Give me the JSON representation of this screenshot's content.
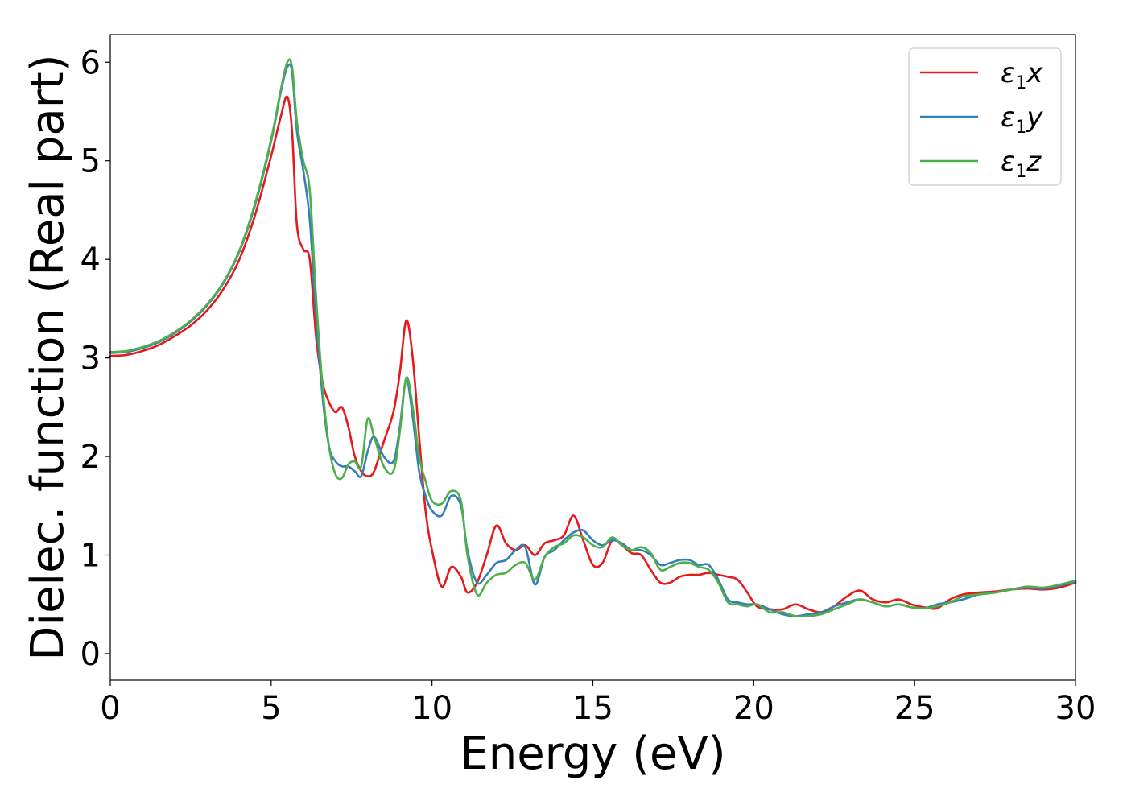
{
  "chart_data": {
    "type": "line",
    "title": "",
    "xlabel": "Energy (eV)",
    "ylabel": "Dielec. function (Real part)",
    "xlim": [
      0,
      30
    ],
    "ylim": [
      -0.27,
      6.28
    ],
    "xticks": [
      "0",
      "5",
      "10",
      "15",
      "20",
      "25",
      "30"
    ],
    "yticks": [
      "0",
      "1",
      "2",
      "3",
      "4",
      "5",
      "6"
    ],
    "grid": false,
    "legend_position": "top-right",
    "series": [
      {
        "name": "ε1x",
        "legend": {
          "main": "ε",
          "sub": "1",
          "suffix": "x"
        },
        "color": "#e41a1c",
        "x": [
          0,
          0.5,
          1,
          1.5,
          2,
          2.5,
          3,
          3.5,
          4,
          4.5,
          5,
          5.3,
          5.5,
          5.65,
          5.8,
          6.0,
          6.2,
          6.4,
          6.6,
          6.8,
          7.0,
          7.2,
          7.4,
          7.6,
          7.8,
          8.0,
          8.2,
          8.5,
          8.8,
          9.0,
          9.2,
          9.4,
          9.6,
          9.8,
          10.0,
          10.3,
          10.6,
          10.9,
          11.1,
          11.4,
          11.7,
          12.0,
          12.3,
          12.6,
          12.9,
          13.2,
          13.5,
          13.8,
          14.1,
          14.4,
          14.7,
          15.0,
          15.3,
          15.6,
          15.9,
          16.2,
          16.5,
          16.8,
          17.1,
          17.4,
          17.7,
          18.0,
          18.3,
          18.6,
          18.9,
          19.2,
          19.5,
          19.8,
          20.1,
          20.5,
          20.9,
          21.3,
          21.7,
          22.1,
          22.5,
          22.9,
          23.3,
          23.7,
          24.1,
          24.5,
          24.9,
          25.3,
          25.7,
          26.1,
          26.5,
          27.0,
          27.5,
          28.0,
          28.5,
          29.0,
          29.5,
          30.0
        ],
        "values": [
          3.02,
          3.03,
          3.07,
          3.13,
          3.22,
          3.33,
          3.48,
          3.69,
          3.99,
          4.45,
          5.05,
          5.45,
          5.65,
          5.3,
          4.35,
          4.1,
          4.0,
          3.2,
          2.75,
          2.55,
          2.45,
          2.5,
          2.3,
          2.0,
          1.85,
          1.8,
          1.85,
          2.15,
          2.45,
          2.85,
          3.38,
          3.0,
          2.2,
          1.45,
          1.05,
          0.68,
          0.88,
          0.78,
          0.62,
          0.72,
          1.0,
          1.3,
          1.12,
          1.05,
          1.1,
          1.0,
          1.12,
          1.15,
          1.2,
          1.4,
          1.15,
          0.9,
          0.92,
          1.15,
          1.1,
          1.02,
          1.0,
          0.85,
          0.72,
          0.72,
          0.78,
          0.8,
          0.8,
          0.82,
          0.8,
          0.78,
          0.75,
          0.62,
          0.48,
          0.45,
          0.45,
          0.5,
          0.45,
          0.42,
          0.48,
          0.58,
          0.64,
          0.55,
          0.52,
          0.55,
          0.5,
          0.47,
          0.46,
          0.55,
          0.6,
          0.62,
          0.63,
          0.65,
          0.66,
          0.65,
          0.67,
          0.72
        ]
      },
      {
        "name": "ε1y",
        "legend": {
          "main": "ε",
          "sub": "1",
          "suffix": "y"
        },
        "color": "#377eb8",
        "x": [
          0,
          0.5,
          1,
          1.5,
          2,
          2.5,
          3,
          3.5,
          4,
          4.5,
          5,
          5.3,
          5.5,
          5.65,
          5.8,
          6.0,
          6.2,
          6.4,
          6.6,
          6.8,
          7.0,
          7.2,
          7.4,
          7.6,
          7.8,
          8.0,
          8.2,
          8.5,
          8.8,
          9.0,
          9.2,
          9.4,
          9.6,
          9.8,
          10.0,
          10.3,
          10.6,
          10.9,
          11.1,
          11.4,
          11.7,
          12.0,
          12.3,
          12.6,
          12.9,
          13.2,
          13.5,
          13.8,
          14.1,
          14.4,
          14.7,
          15.0,
          15.3,
          15.6,
          15.9,
          16.2,
          16.5,
          16.8,
          17.1,
          17.4,
          17.7,
          18.0,
          18.3,
          18.6,
          18.9,
          19.2,
          19.5,
          19.8,
          20.1,
          20.5,
          20.9,
          21.3,
          21.7,
          22.1,
          22.5,
          22.9,
          23.3,
          23.7,
          24.1,
          24.5,
          24.9,
          25.3,
          25.7,
          26.1,
          26.5,
          27.0,
          27.5,
          28.0,
          28.5,
          29.0,
          29.5,
          30.0
        ],
        "values": [
          3.05,
          3.06,
          3.1,
          3.16,
          3.25,
          3.37,
          3.53,
          3.75,
          4.07,
          4.55,
          5.2,
          5.7,
          5.95,
          5.9,
          5.3,
          4.9,
          4.4,
          3.4,
          2.6,
          2.1,
          1.95,
          1.9,
          1.9,
          1.85,
          1.8,
          2.05,
          2.2,
          2.0,
          1.95,
          2.3,
          2.78,
          2.4,
          1.85,
          1.6,
          1.45,
          1.4,
          1.6,
          1.5,
          1.05,
          0.72,
          0.8,
          0.92,
          0.95,
          1.05,
          1.08,
          0.7,
          0.98,
          1.05,
          1.15,
          1.23,
          1.25,
          1.15,
          1.1,
          1.15,
          1.12,
          1.05,
          1.05,
          1.0,
          0.9,
          0.92,
          0.95,
          0.95,
          0.9,
          0.9,
          0.75,
          0.55,
          0.52,
          0.5,
          0.5,
          0.45,
          0.4,
          0.38,
          0.4,
          0.42,
          0.48,
          0.52,
          0.55,
          0.52,
          0.48,
          0.5,
          0.47,
          0.46,
          0.5,
          0.52,
          0.55,
          0.6,
          0.62,
          0.65,
          0.67,
          0.66,
          0.69,
          0.73
        ]
      },
      {
        "name": "ε1z",
        "legend": {
          "main": "ε",
          "sub": "1",
          "suffix": "z"
        },
        "color": "#4daf4a",
        "x": [
          0,
          0.5,
          1,
          1.5,
          2,
          2.5,
          3,
          3.5,
          4,
          4.5,
          5,
          5.3,
          5.5,
          5.65,
          5.8,
          6.0,
          6.2,
          6.4,
          6.6,
          6.8,
          7.0,
          7.2,
          7.4,
          7.6,
          7.8,
          8.0,
          8.2,
          8.5,
          8.8,
          9.0,
          9.2,
          9.4,
          9.6,
          9.8,
          10.0,
          10.3,
          10.6,
          10.9,
          11.1,
          11.4,
          11.7,
          12.0,
          12.3,
          12.6,
          12.9,
          13.2,
          13.5,
          13.8,
          14.1,
          14.4,
          14.7,
          15.0,
          15.3,
          15.6,
          15.9,
          16.2,
          16.5,
          16.8,
          17.1,
          17.4,
          17.7,
          18.0,
          18.3,
          18.6,
          18.9,
          19.2,
          19.5,
          19.8,
          20.1,
          20.5,
          20.9,
          21.3,
          21.7,
          22.1,
          22.5,
          22.9,
          23.3,
          23.7,
          24.1,
          24.5,
          24.9,
          25.3,
          25.7,
          26.1,
          26.5,
          27.0,
          27.5,
          28.0,
          28.5,
          29.0,
          29.5,
          30.0
        ],
        "values": [
          3.06,
          3.07,
          3.11,
          3.17,
          3.26,
          3.38,
          3.54,
          3.76,
          4.08,
          4.57,
          5.22,
          5.72,
          6.0,
          5.95,
          5.4,
          5.0,
          4.7,
          3.6,
          2.7,
          2.1,
          1.82,
          1.78,
          1.92,
          1.95,
          1.9,
          2.38,
          2.2,
          1.9,
          1.85,
          2.25,
          2.8,
          2.5,
          2.0,
          1.75,
          1.55,
          1.52,
          1.65,
          1.55,
          1.0,
          0.6,
          0.72,
          0.8,
          0.82,
          0.9,
          0.92,
          0.75,
          0.98,
          1.08,
          1.12,
          1.2,
          1.18,
          1.1,
          1.08,
          1.18,
          1.1,
          1.05,
          1.08,
          1.02,
          0.85,
          0.88,
          0.92,
          0.92,
          0.88,
          0.85,
          0.72,
          0.52,
          0.5,
          0.48,
          0.5,
          0.42,
          0.42,
          0.38,
          0.38,
          0.4,
          0.45,
          0.5,
          0.55,
          0.52,
          0.48,
          0.5,
          0.47,
          0.46,
          0.48,
          0.52,
          0.58,
          0.6,
          0.62,
          0.65,
          0.68,
          0.67,
          0.7,
          0.74
        ]
      }
    ]
  }
}
